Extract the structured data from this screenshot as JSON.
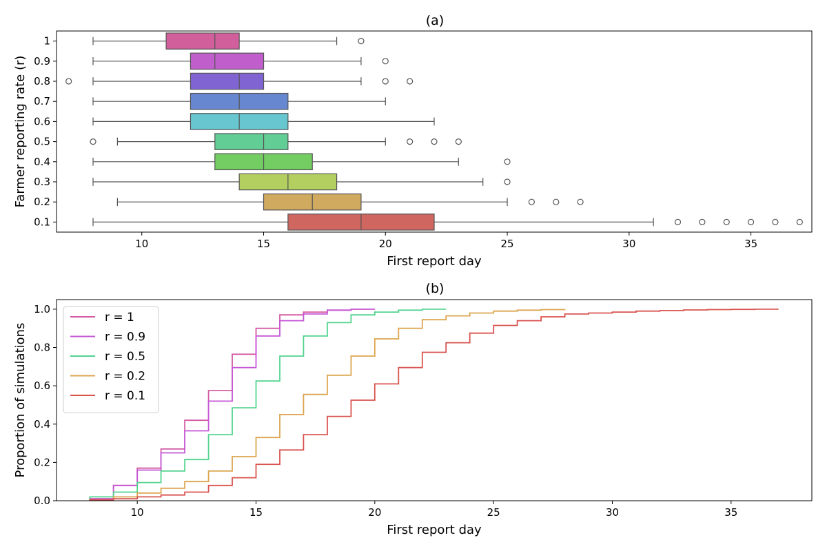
{
  "chart_data": [
    {
      "type": "box",
      "title": "(a)",
      "xlabel": "First report day",
      "ylabel": "Farmer reporting rate (r)",
      "xlim": [
        6.5,
        37.5
      ],
      "xticks": [
        10,
        15,
        20,
        25,
        30,
        35
      ],
      "orientation": "horizontal",
      "categories": [
        "1",
        "0.9",
        "0.8",
        "0.7",
        "0.6",
        "0.5",
        "0.4",
        "0.3",
        "0.2",
        "0.1"
      ],
      "boxes": [
        {
          "category": "1",
          "whislo": 8,
          "q1": 11,
          "med": 13,
          "q3": 14,
          "whishi": 18,
          "fliers": [
            19
          ],
          "color": "#d15f9c"
        },
        {
          "category": "0.9",
          "whislo": 8,
          "q1": 12,
          "med": 13,
          "q3": 15,
          "whishi": 19,
          "fliers": [
            20
          ],
          "color": "#c05fcc"
        },
        {
          "category": "0.8",
          "whislo": 8,
          "q1": 12,
          "med": 14,
          "q3": 15,
          "whishi": 19,
          "fliers": [
            7,
            20,
            21
          ],
          "color": "#8064d1"
        },
        {
          "category": "0.7",
          "whislo": 8,
          "q1": 12,
          "med": 14,
          "q3": 16,
          "whishi": 20,
          "fliers": [],
          "color": "#6787d1"
        },
        {
          "category": "0.6",
          "whislo": 8,
          "q1": 12,
          "med": 14,
          "q3": 16,
          "whishi": 22,
          "fliers": [],
          "color": "#67c6cf"
        },
        {
          "category": "0.5",
          "whislo": 9,
          "q1": 13,
          "med": 15,
          "q3": 16,
          "whishi": 20,
          "fliers": [
            8,
            21,
            22,
            23
          ],
          "color": "#62cd95"
        },
        {
          "category": "0.4",
          "whislo": 8,
          "q1": 13,
          "med": 15,
          "q3": 17,
          "whishi": 23,
          "fliers": [
            25
          ],
          "color": "#73cd62"
        },
        {
          "category": "0.3",
          "whislo": 8,
          "q1": 14,
          "med": 16,
          "q3": 18,
          "whishi": 24,
          "fliers": [
            25
          ],
          "color": "#b3cf5f"
        },
        {
          "category": "0.2",
          "whislo": 9,
          "q1": 15,
          "med": 17,
          "q3": 19,
          "whishi": 25,
          "fliers": [
            26,
            27,
            28
          ],
          "color": "#d0aa5f"
        },
        {
          "category": "0.1",
          "whislo": 8,
          "q1": 16,
          "med": 19,
          "q3": 22,
          "whishi": 31,
          "fliers": [
            32,
            33,
            34,
            35,
            36,
            37
          ],
          "color": "#cf665f"
        }
      ]
    },
    {
      "type": "line",
      "subtype": "step-ecdf",
      "title": "(b)",
      "xlabel": "First report day",
      "ylabel": "Proportion of simulations",
      "xlim": [
        6.6,
        38.4
      ],
      "ylim": [
        0,
        1.05
      ],
      "xticks": [
        10,
        15,
        20,
        25,
        30,
        35
      ],
      "yticks": [
        "0.0",
        "0.2",
        "0.4",
        "0.6",
        "0.8",
        "1.0"
      ],
      "legend_position": "upper-left",
      "series": [
        {
          "name": "r = 1",
          "color": "#d35aa3",
          "x": [
            8,
            9,
            10,
            11,
            12,
            13,
            14,
            15,
            16,
            17,
            18,
            19,
            20
          ],
          "y": [
            0.01,
            0.08,
            0.17,
            0.27,
            0.42,
            0.575,
            0.765,
            0.9,
            0.97,
            0.985,
            0.995,
            1.0,
            1.0
          ]
        },
        {
          "name": "r = 0.9",
          "color": "#c556d6",
          "x": [
            8,
            9,
            10,
            11,
            12,
            13,
            14,
            15,
            16,
            17,
            18,
            19,
            20
          ],
          "y": [
            0.01,
            0.08,
            0.16,
            0.25,
            0.365,
            0.52,
            0.695,
            0.86,
            0.94,
            0.975,
            0.995,
            1.0,
            1.0
          ]
        },
        {
          "name": "r = 0.5",
          "color": "#52d48f",
          "x": [
            8,
            9,
            10,
            11,
            12,
            13,
            14,
            15,
            16,
            17,
            18,
            19,
            20,
            21,
            22,
            23
          ],
          "y": [
            0.02,
            0.045,
            0.095,
            0.155,
            0.215,
            0.345,
            0.485,
            0.625,
            0.755,
            0.86,
            0.93,
            0.97,
            0.985,
            0.995,
            1.0,
            1.0
          ]
        },
        {
          "name": "r = 0.2",
          "color": "#dca54f",
          "x": [
            8,
            9,
            10,
            11,
            12,
            13,
            14,
            15,
            16,
            17,
            18,
            19,
            20,
            21,
            22,
            23,
            24,
            25,
            26,
            27,
            28
          ],
          "y": [
            0.005,
            0.02,
            0.04,
            0.065,
            0.1,
            0.155,
            0.23,
            0.33,
            0.45,
            0.555,
            0.655,
            0.755,
            0.845,
            0.9,
            0.945,
            0.965,
            0.98,
            0.99,
            0.995,
            0.998,
            1.0
          ]
        },
        {
          "name": "r = 0.1",
          "color": "#d9534f",
          "x": [
            8,
            9,
            10,
            11,
            12,
            13,
            14,
            15,
            16,
            17,
            18,
            19,
            20,
            21,
            22,
            23,
            24,
            25,
            26,
            27,
            28,
            29,
            30,
            31,
            32,
            33,
            34,
            35,
            36,
            37
          ],
          "y": [
            0.005,
            0.01,
            0.02,
            0.03,
            0.045,
            0.08,
            0.12,
            0.19,
            0.265,
            0.345,
            0.44,
            0.525,
            0.61,
            0.695,
            0.775,
            0.825,
            0.875,
            0.915,
            0.94,
            0.96,
            0.975,
            0.98,
            0.985,
            0.99,
            0.993,
            0.996,
            0.998,
            0.999,
            1.0,
            1.0
          ]
        }
      ]
    }
  ]
}
